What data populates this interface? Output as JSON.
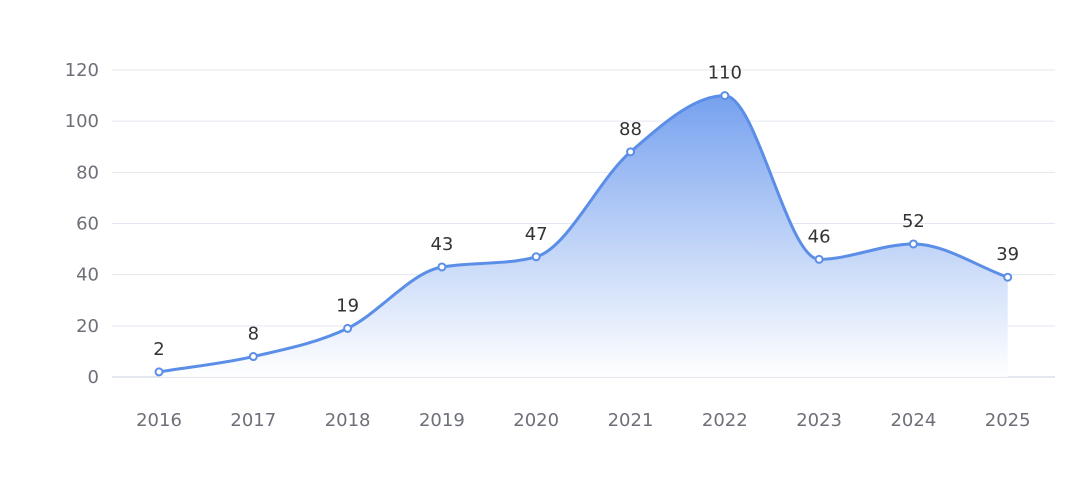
{
  "chart_data": {
    "type": "area",
    "categories": [
      "2016",
      "2017",
      "2018",
      "2019",
      "2020",
      "2021",
      "2022",
      "2023",
      "2024",
      "2025"
    ],
    "series": [
      {
        "values": [
          2,
          8,
          19,
          43,
          47,
          88,
          110,
          46,
          52,
          39
        ]
      }
    ],
    "ylim": [
      0,
      120
    ],
    "yticks": [
      0,
      20,
      40,
      60,
      80,
      100,
      120
    ],
    "grid": true,
    "smooth": true,
    "data_labels": true,
    "colors": {
      "line": "#5b8ee6",
      "area_top": "#6f9cee",
      "area_bottom": "#ffffff",
      "marker_fill": "#ffffff"
    }
  }
}
